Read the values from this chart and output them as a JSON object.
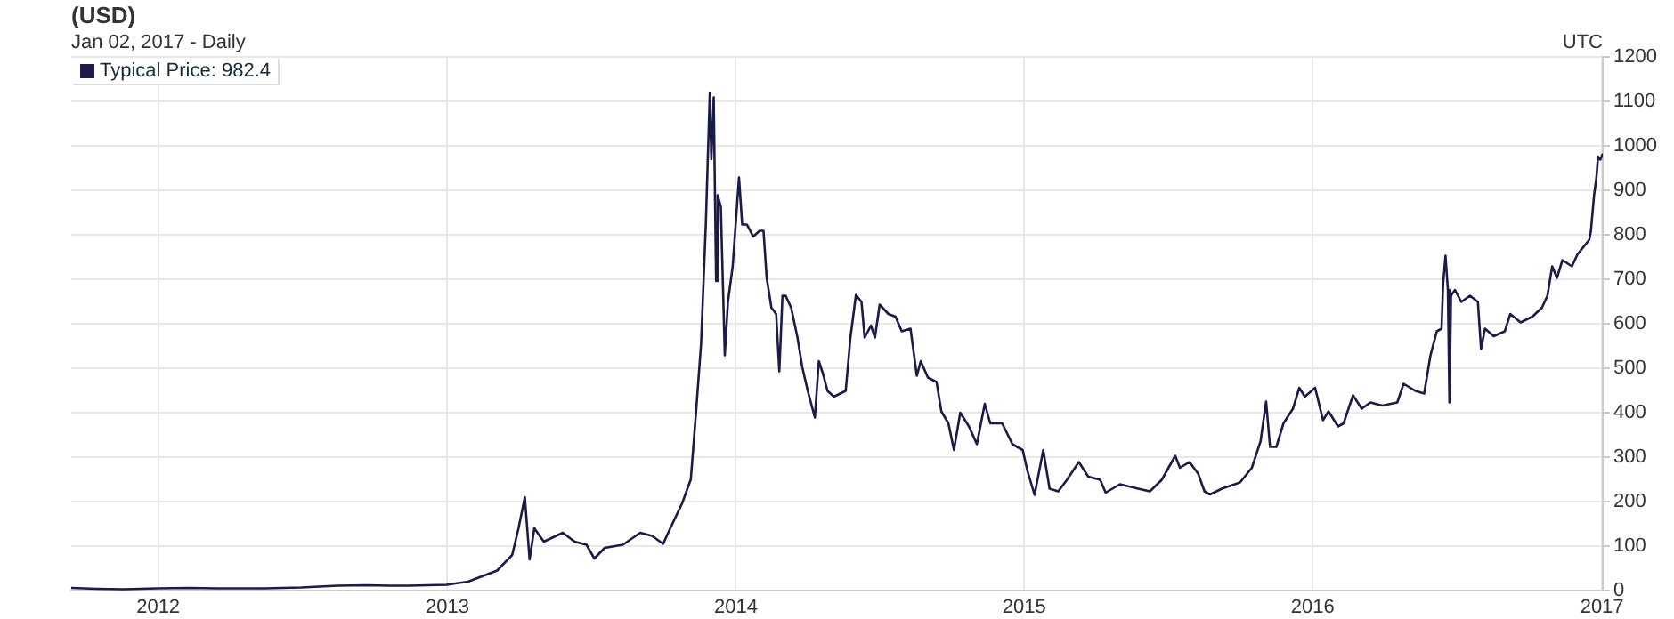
{
  "chart_data": {
    "type": "line",
    "title": "(USD)",
    "subtitle": "Jan 02, 2017 - Daily",
    "annotations": [
      "UTC"
    ],
    "x": [
      "2011-09-13",
      "2011-10-15",
      "2011-11-18",
      "2011-12-31",
      "2012-02-10",
      "2012-03-15",
      "2012-05-15",
      "2012-06-30",
      "2012-08-15",
      "2012-09-20",
      "2012-10-20",
      "2012-11-13",
      "2012-12-31",
      "2013-01-27",
      "2013-03-05",
      "2013-03-24",
      "2013-04-01",
      "2013-04-09",
      "2013-04-15",
      "2013-04-21",
      "2013-04-25",
      "2013-05-03",
      "2013-05-27",
      "2013-06-11",
      "2013-06-26",
      "2013-07-06",
      "2013-07-19",
      "2013-08-11",
      "2013-09-02",
      "2013-09-17",
      "2013-10-01",
      "2013-10-10",
      "2013-10-25",
      "2013-11-05",
      "2013-11-12",
      "2013-11-18",
      "2013-11-24",
      "2013-11-29",
      "2013-12-01",
      "2013-12-04",
      "2013-12-07",
      "2013-12-09",
      "2013-12-13",
      "2013-12-18",
      "2013-12-22",
      "2013-12-28",
      "2014-01-05",
      "2014-01-09",
      "2014-01-15",
      "2014-01-23",
      "2014-01-31",
      "2014-02-05",
      "2014-02-09",
      "2014-02-15",
      "2014-02-21",
      "2014-02-25",
      "2014-03-01",
      "2014-03-05",
      "2014-03-12",
      "2014-03-20",
      "2014-03-26",
      "2014-04-02",
      "2014-04-11",
      "2014-04-16",
      "2014-04-21",
      "2014-04-27",
      "2014-05-05",
      "2014-05-20",
      "2014-05-26",
      "2014-06-02",
      "2014-06-09",
      "2014-06-13",
      "2014-06-21",
      "2014-06-26",
      "2014-07-02",
      "2014-07-13",
      "2014-07-22",
      "2014-07-30",
      "2014-08-10",
      "2014-08-18",
      "2014-08-23",
      "2014-09-01",
      "2014-09-12",
      "2014-09-18",
      "2014-09-27",
      "2014-10-04",
      "2014-10-12",
      "2014-10-23",
      "2014-11-02",
      "2014-11-12",
      "2014-11-19",
      "2014-12-04",
      "2014-12-17",
      "2014-12-30",
      "2015-01-05",
      "2015-01-14",
      "2015-01-25",
      "2015-02-02",
      "2015-02-13",
      "2015-02-24",
      "2015-03-11",
      "2015-03-23",
      "2015-04-07",
      "2015-04-14",
      "2015-05-02",
      "2015-05-25",
      "2015-06-09",
      "2015-06-24",
      "2015-07-11",
      "2015-07-17",
      "2015-07-29",
      "2015-08-09",
      "2015-08-17",
      "2015-08-24",
      "2015-09-08",
      "2015-10-01",
      "2015-10-16",
      "2015-10-27",
      "2015-11-03",
      "2015-11-08",
      "2015-11-16",
      "2015-11-25",
      "2015-12-07",
      "2015-12-15",
      "2015-12-22",
      "2016-01-04",
      "2016-01-14",
      "2016-01-21",
      "2016-02-02",
      "2016-02-09",
      "2016-02-21",
      "2016-03-03",
      "2016-03-14",
      "2016-03-29",
      "2016-04-17",
      "2016-04-25",
      "2016-05-10",
      "2016-05-21",
      "2016-05-29",
      "2016-06-06",
      "2016-06-12",
      "2016-06-14",
      "2016-06-17",
      "2016-06-20",
      "2016-06-22",
      "2016-06-24",
      "2016-06-29",
      "2016-07-07",
      "2016-07-18",
      "2016-07-28",
      "2016-08-01",
      "2016-08-06",
      "2016-08-17",
      "2016-08-31",
      "2016-09-07",
      "2016-09-20",
      "2016-10-05",
      "2016-10-17",
      "2016-10-24",
      "2016-10-30",
      "2016-11-05",
      "2016-11-12",
      "2016-11-24",
      "2016-12-01",
      "2016-12-16",
      "2016-12-18",
      "2016-12-22",
      "2016-12-25",
      "2016-12-27",
      "2016-12-30",
      "2017-01-02"
    ],
    "series": [
      {
        "name": "Typical Price: 982.4",
        "color": "#1b1b47",
        "values": [
          6,
          4,
          3,
          5,
          6,
          5,
          5,
          7,
          11,
          12,
          11,
          11,
          13,
          20,
          45,
          80,
          140,
          210,
          70,
          140,
          130,
          110,
          130,
          110,
          103,
          72,
          96,
          103,
          130,
          123,
          105,
          140,
          196,
          250,
          410,
          555,
          823,
          1118,
          970,
          1109,
          696,
          889,
          863,
          529,
          649,
          729,
          929,
          823,
          823,
          796,
          809,
          809,
          703,
          636,
          622,
          493,
          663,
          663,
          636,
          569,
          503,
          449,
          389,
          516,
          489,
          449,
          436,
          449,
          569,
          665,
          649,
          569,
          596,
          569,
          643,
          622,
          616,
          583,
          589,
          483,
          516,
          479,
          469,
          403,
          376,
          316,
          400,
          369,
          329,
          420,
          376,
          376,
          329,
          316,
          269,
          215,
          316,
          229,
          223,
          249,
          289,
          256,
          249,
          220,
          239,
          229,
          223,
          249,
          303,
          276,
          289,
          263,
          223,
          216,
          229,
          243,
          276,
          336,
          425,
          323,
          323,
          376,
          409,
          456,
          436,
          456,
          383,
          403,
          369,
          376,
          439,
          409,
          423,
          416,
          423,
          465,
          449,
          443,
          529,
          583,
          589,
          689,
          753,
          676,
          423,
          663,
          676,
          649,
          663,
          649,
          543,
          589,
          572,
          583,
          622,
          603,
          616,
          636,
          663,
          729,
          703,
          743,
          729,
          756,
          789,
          809,
          889,
          929,
          976,
          969,
          982.4
        ]
      }
    ],
    "xlim": [
      "2011-09-13",
      "2017-01-02"
    ],
    "xticks": [
      "2012",
      "2013",
      "2014",
      "2015",
      "2016",
      "2017"
    ],
    "ylim": [
      0,
      1200
    ],
    "yticks": [
      0,
      100,
      200,
      300,
      400,
      500,
      600,
      700,
      800,
      900,
      1000,
      1100,
      1200
    ],
    "grid": true,
    "legend": "top left"
  }
}
